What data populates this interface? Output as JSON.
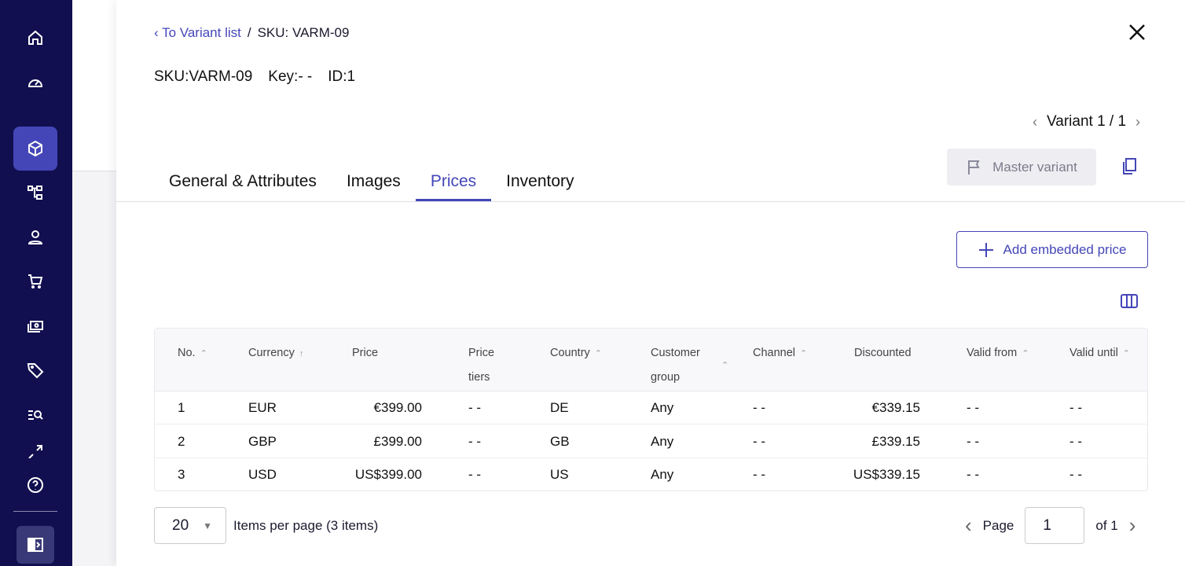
{
  "sidebar": {
    "items": [
      "home-icon",
      "dashboard-icon",
      "products-icon",
      "categories-icon",
      "customers-icon",
      "orders-icon",
      "discounts-icon",
      "tags-icon",
      "search-list-icon",
      "expand-icon",
      "help-icon"
    ],
    "active": "products-icon"
  },
  "breadcrumb": {
    "back": "To Variant list",
    "sep": "/",
    "current": "SKU: VARM-09"
  },
  "ids": {
    "sku": "SKU:VARM-09",
    "key": "Key:- -",
    "id": "ID:1"
  },
  "variant_nav": {
    "label": "Variant 1 / 1"
  },
  "master_variant": "Master variant",
  "tabs": [
    {
      "label": "General & Attributes"
    },
    {
      "label": "Images"
    },
    {
      "label": "Prices",
      "active": true
    },
    {
      "label": "Inventory"
    }
  ],
  "add_price": "Add embedded price",
  "table": {
    "headers": [
      "No.",
      "Currency",
      "Price",
      "Price tiers",
      "Country",
      "Customer group",
      "Channel",
      "Discounted",
      "Valid from",
      "Valid until"
    ],
    "rows": [
      [
        "1",
        "EUR",
        "€399.00",
        "- -",
        "DE",
        "Any",
        "- -",
        "€339.15",
        "- -",
        "- -"
      ],
      [
        "2",
        "GBP",
        "£399.00",
        "- -",
        "GB",
        "Any",
        "- -",
        "£339.15",
        "- -",
        "- -"
      ],
      [
        "3",
        "USD",
        "US$399.00",
        "- -",
        "US",
        "Any",
        "- -",
        "US$339.15",
        "- -",
        "- -"
      ]
    ]
  },
  "pagination": {
    "per_page": "20",
    "per_page_label": "Items per page (3 items)",
    "page_label": "Page",
    "page": "1",
    "of": "of 1"
  },
  "colors": {
    "sidebar": "#110f4f",
    "accent": "#4446b8"
  }
}
